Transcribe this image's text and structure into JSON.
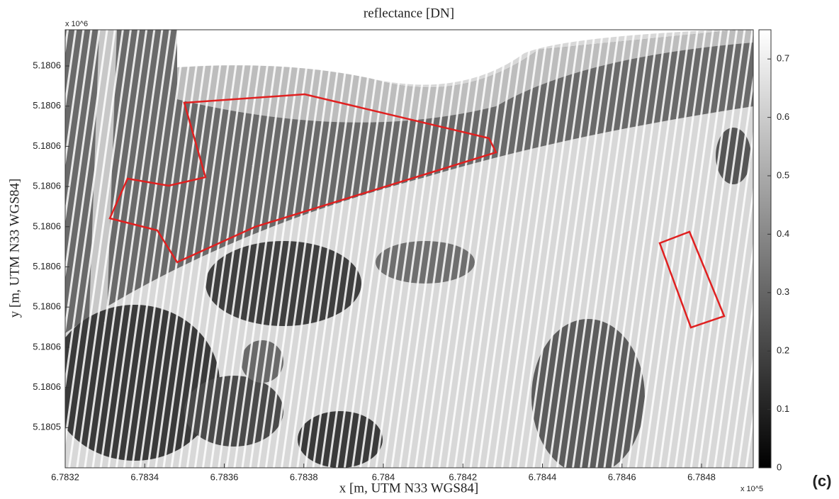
{
  "chart_data": {
    "type": "scatter",
    "title": "reflectance [DN]",
    "x_label": "x [m, UTM N33 WGS84]",
    "y_label": "y [m, UTM N33 WGS84]",
    "x_multiplier": "x 10^5",
    "y_multiplier": "x 10^6",
    "panel_label": "(c)",
    "xlim": [
      678320,
      678493
    ],
    "xticks": [
      {
        "value": 678320,
        "label": "6.7832"
      },
      {
        "value": 678340,
        "label": "6.7834"
      },
      {
        "value": 678360,
        "label": "6.7836"
      },
      {
        "value": 678380,
        "label": "6.7838"
      },
      {
        "value": 678400,
        "label": "6.784"
      },
      {
        "value": 678420,
        "label": "6.7842"
      },
      {
        "value": 678440,
        "label": "6.7844"
      },
      {
        "value": 678460,
        "label": "6.7846"
      },
      {
        "value": 678480,
        "label": "6.7848"
      }
    ],
    "ylim": [
      5180530,
      5180639
    ],
    "yticks": [
      {
        "value": 5180540,
        "label": "5.1805"
      },
      {
        "value": 5180550,
        "label": "5.1806"
      },
      {
        "value": 5180560,
        "label": "5.1806"
      },
      {
        "value": 5180570,
        "label": "5.1806"
      },
      {
        "value": 5180580,
        "label": "5.1806"
      },
      {
        "value": 5180590,
        "label": "5.1806"
      },
      {
        "value": 5180600,
        "label": "5.1806"
      },
      {
        "value": 5180610,
        "label": "5.1806"
      },
      {
        "value": 5180620,
        "label": "5.1806"
      },
      {
        "value": 5180630,
        "label": "5.1806"
      }
    ],
    "colorbar": {
      "clim": [
        0,
        0.75
      ],
      "ticks": [
        0,
        0.1,
        0.2,
        0.3,
        0.4,
        0.5,
        0.6,
        0.7
      ],
      "colormap": "gray"
    }
  }
}
